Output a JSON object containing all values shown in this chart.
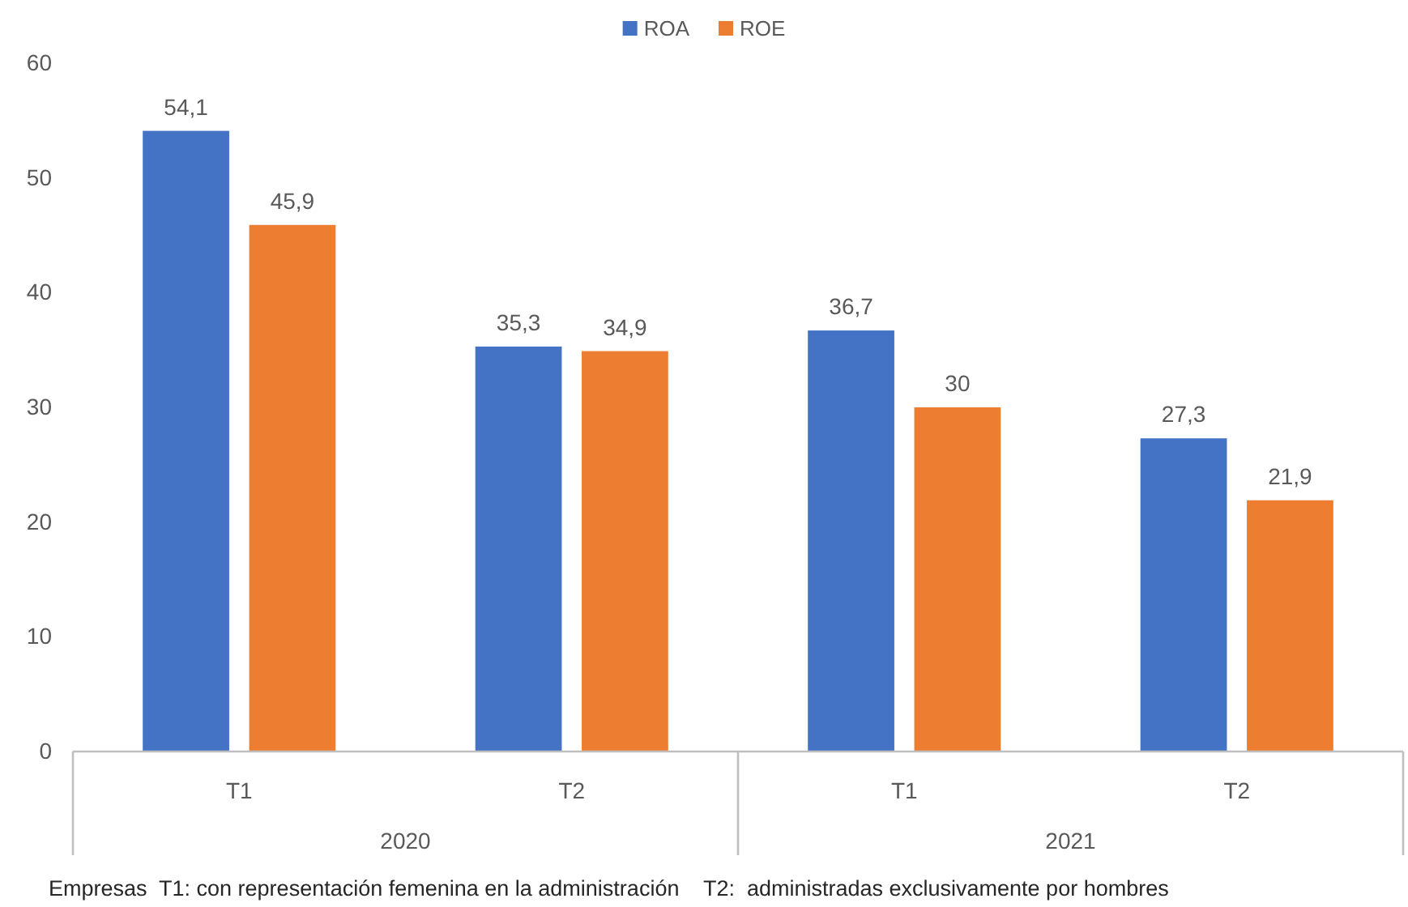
{
  "chart_data": {
    "type": "bar",
    "categories": [
      "T1",
      "T2",
      "T1",
      "T2"
    ],
    "series": [
      {
        "name": "ROA",
        "color": "#4472c4",
        "values": [
          54.1,
          35.3,
          36.7,
          27.3
        ],
        "value_labels": [
          "54,1",
          "35,3",
          "36,7",
          "27,3"
        ]
      },
      {
        "name": "ROE",
        "color": "#ed7d31",
        "values": [
          45.9,
          34.9,
          30,
          21.9
        ],
        "value_labels": [
          "45,9",
          "34,9",
          "30",
          "21,9"
        ]
      }
    ],
    "ylim": [
      0,
      60
    ],
    "yticks": [
      0,
      10,
      20,
      30,
      40,
      50,
      60
    ],
    "legend": "top",
    "annotations": [
      "2020",
      "2021",
      "Empresas  T1: con representación femenina en la administración    T2:  administradas exclusivamente por hombres"
    ]
  }
}
